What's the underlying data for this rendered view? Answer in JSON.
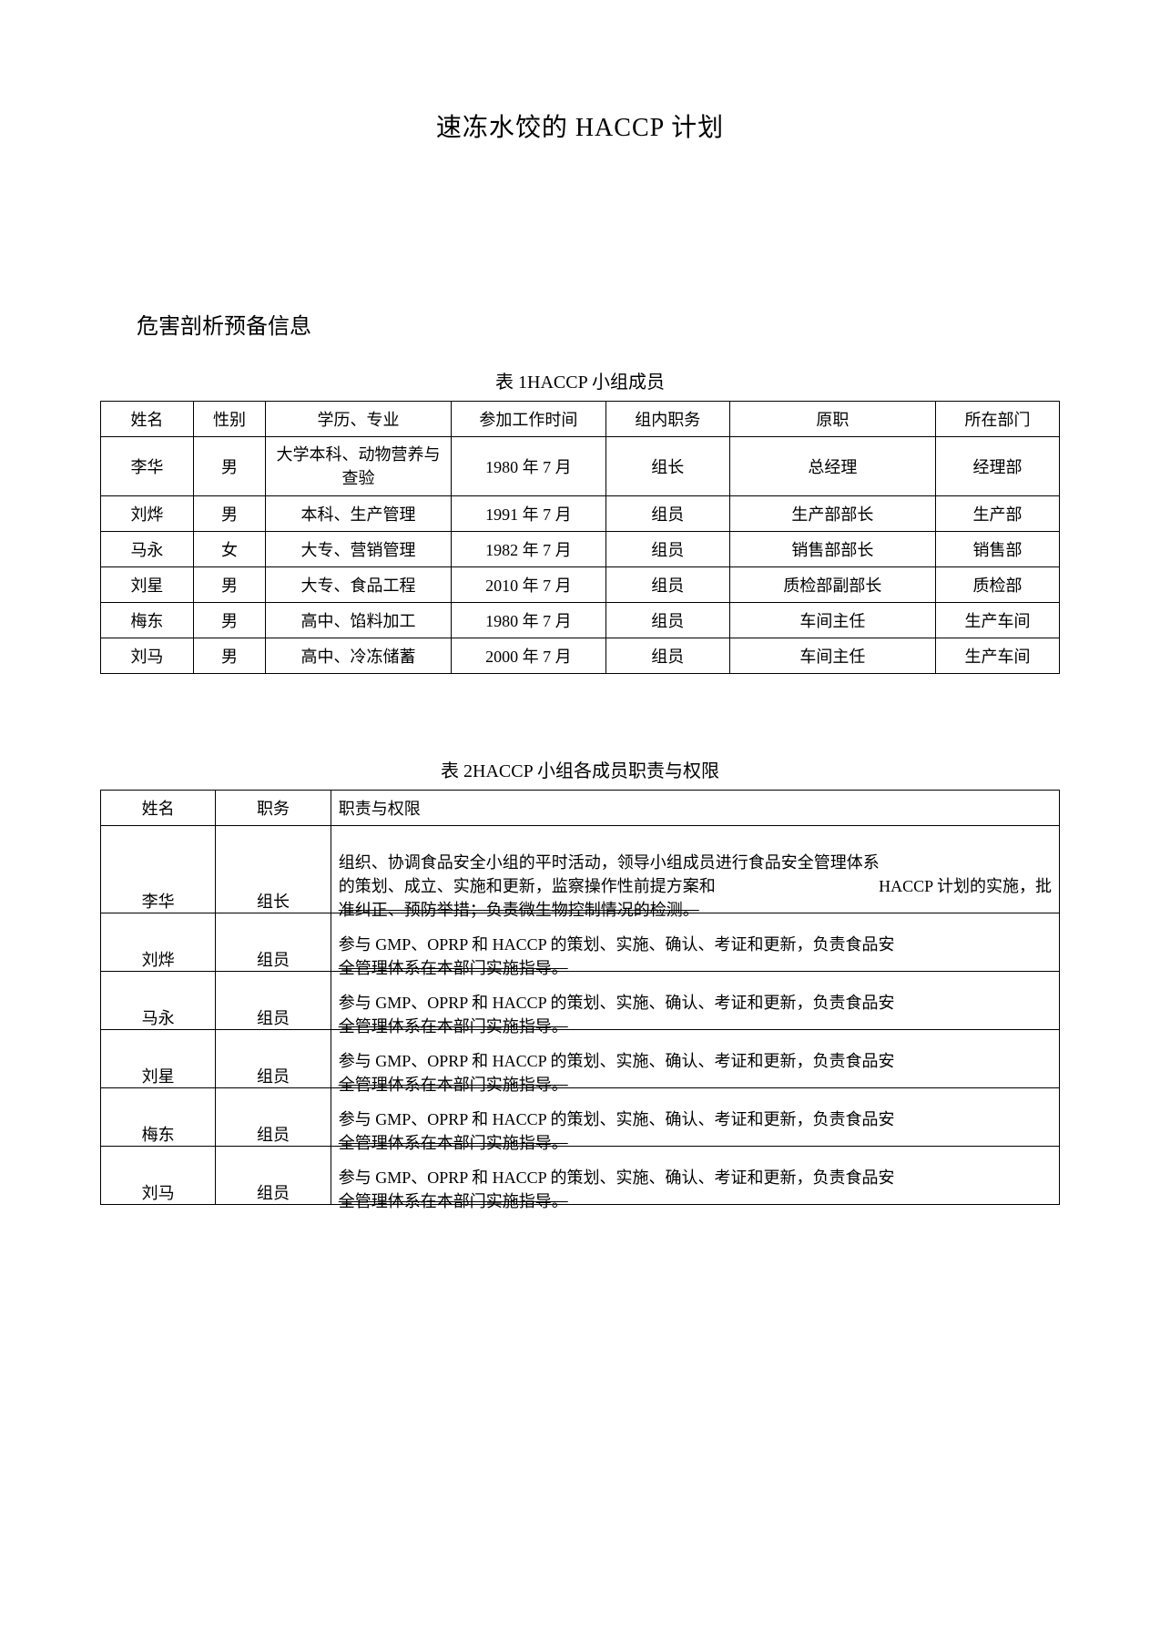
{
  "doc": {
    "title": "速冻水饺的 HACCP 计划",
    "section_heading": "危害剖析预备信息"
  },
  "table1": {
    "caption": "表 1HACCP 小组成员",
    "headers": [
      "姓名",
      "性别",
      "学历、专业",
      "参加工作时间",
      "组内职务",
      "原职",
      "所在部门"
    ],
    "rows": [
      [
        "李华",
        "男",
        "大学本科、动物营养与查验",
        "1980 年 7 月",
        "组长",
        "总经理",
        "经理部"
      ],
      [
        "刘烨",
        "男",
        "本科、生产管理",
        "1991 年 7 月",
        "组员",
        "生产部部长",
        "生产部"
      ],
      [
        "马永",
        "女",
        "大专、营销管理",
        "1982 年 7 月",
        "组员",
        "销售部部长",
        "销售部"
      ],
      [
        "刘星",
        "男",
        "大专、食品工程",
        "2010 年 7 月",
        "组员",
        "质检部副部长",
        "质检部"
      ],
      [
        "梅东",
        "男",
        "高中、馅料加工",
        "1980 年 7 月",
        "组员",
        "车间主任",
        "生产车间"
      ],
      [
        "刘马",
        "男",
        "高中、冷冻储蓄",
        "2000 年 7 月",
        "组员",
        "车间主任",
        "生产车间"
      ]
    ]
  },
  "table2": {
    "caption": "表 2HACCP 小组各成员职责与权限",
    "headers": [
      "姓名",
      "职务",
      "职责与权限"
    ],
    "leader": {
      "name": "李华",
      "role": "组长",
      "line1": "组织、协调食品安全小组的平时活动，领导小组成员进行食品安全管理体系",
      "line2a": "的策划、成立、实施和更新，监察操作性前提方案和",
      "line2b": "HACCP 计划的实施，批",
      "line3_strike": "准纠正、预防举措；负责微生物控制情况的检测。"
    },
    "members": [
      {
        "name": "刘烨",
        "role": "组员",
        "l1": "参与 GMP、OPRP 和 HACCP 的策划、实施、确认、考证和更新，负责食品安",
        "l2_strike": "全管理体系在本部门实施指导。"
      },
      {
        "name": "马永",
        "role": "组员",
        "l1": "参与 GMP、OPRP 和 HACCP 的策划、实施、确认、考证和更新，负责食品安",
        "l2_strike": "全管理体系在本部门实施指导。"
      },
      {
        "name": "刘星",
        "role": "组员",
        "l1": "参与 GMP、OPRP 和 HACCP 的策划、实施、确认、考证和更新，负责食品安",
        "l2_strike": "全管理体系在本部门实施指导。"
      },
      {
        "name": "梅东",
        "role": "组员",
        "l1": "参与 GMP、OPRP 和 HACCP 的策划、实施、确认、考证和更新，负责食品安",
        "l2_strike": "全管理体系在本部门实施指导。"
      },
      {
        "name": "刘马",
        "role": "组员",
        "l1": "参与 GMP、OPRP 和 HACCP 的策划、实施、确认、考证和更新，负责食品安",
        "l2_strike": "全管理体系在本部门实施指导。"
      }
    ]
  }
}
